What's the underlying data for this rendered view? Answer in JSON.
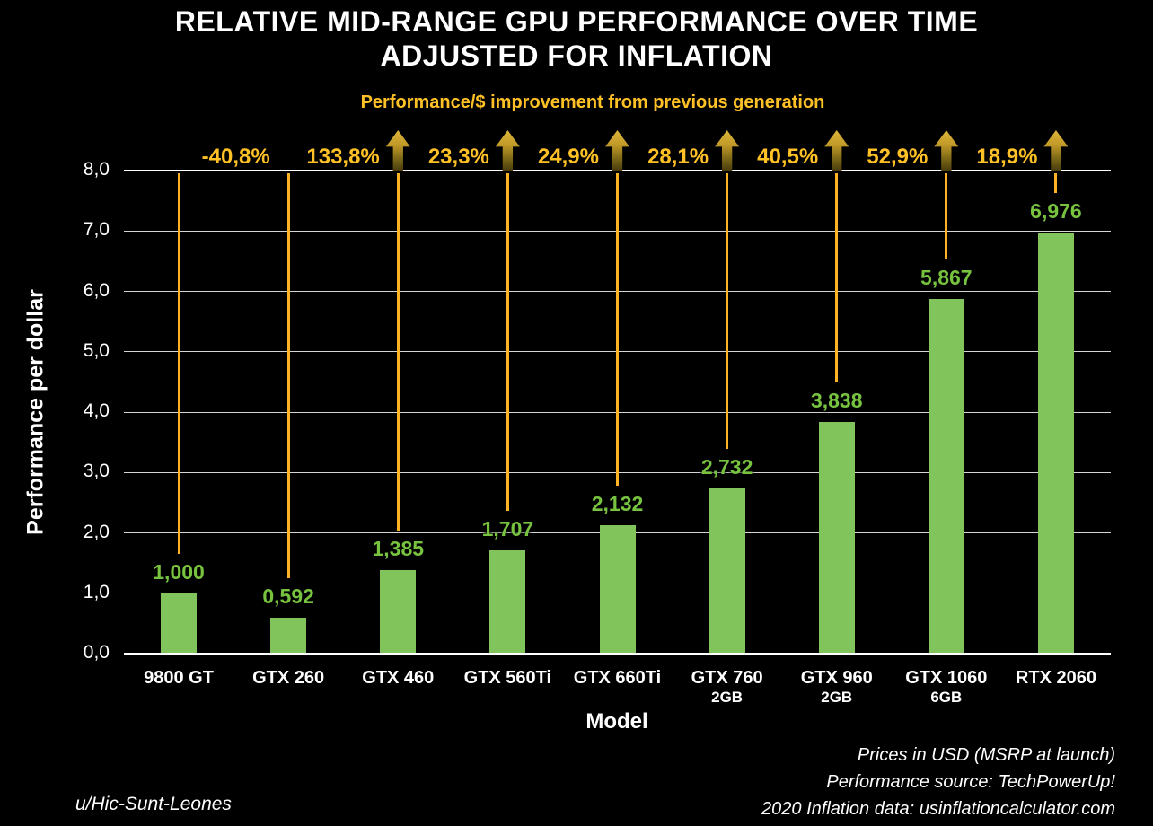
{
  "title": {
    "line1": "RELATIVE MID-RANGE GPU PERFORMANCE OVER TIME",
    "line2": "ADJUSTED FOR INFLATION"
  },
  "subtitle": "Performance/$ improvement from previous generation",
  "chart_data": {
    "type": "bar",
    "title": "Relative mid-range GPU performance over time adjusted for inflation",
    "xlabel": "Model",
    "ylabel": "Performance per dollar",
    "ylim": [
      0,
      8
    ],
    "ytick_step": 1,
    "ytick_labels": [
      "0,0",
      "1,0",
      "2,0",
      "3,0",
      "4,0",
      "5,0",
      "6,0",
      "7,0",
      "8,0"
    ],
    "grid": true,
    "legend": false,
    "categories": [
      "9800 GT",
      "GTX 260",
      "GTX 460",
      "GTX 560Ti",
      "GTX 660Ti",
      "GTX 760",
      "GTX 960",
      "GTX 1060",
      "RTX 2060"
    ],
    "category_sublabels": [
      "",
      "",
      "",
      "",
      "",
      "2GB",
      "2GB",
      "6GB",
      ""
    ],
    "values": [
      1.0,
      0.592,
      1.385,
      1.707,
      2.132,
      2.732,
      3.838,
      5.867,
      6.976
    ],
    "value_labels": [
      "1,000",
      "0,592",
      "1,385",
      "1,707",
      "2,132",
      "2,732",
      "3,838",
      "5,867",
      "6,976"
    ],
    "pct_changes": [
      {
        "label": "-40,8%",
        "arrow": false
      },
      {
        "label": "133,8%",
        "arrow": true
      },
      {
        "label": "23,3%",
        "arrow": true
      },
      {
        "label": "24,9%",
        "arrow": true
      },
      {
        "label": "28,1%",
        "arrow": true
      },
      {
        "label": "40,5%",
        "arrow": true
      },
      {
        "label": "52,9%",
        "arrow": true
      },
      {
        "label": "18,9%",
        "arrow": true
      }
    ],
    "colors": {
      "background": "#000000",
      "bar": "#82c45c",
      "value_label": "#77c33f",
      "accent_gold": "#ffc125",
      "drop_line": "#ffb224",
      "arrow_top": "#dcb53a",
      "arrow_bottom": "#46390b",
      "grid": "#d4d4d4",
      "axis": "#ffffff",
      "text": "#ffffff"
    }
  },
  "footer": {
    "credit": "u/Hic-Sunt-Leones",
    "notes": [
      "Prices in USD (MSRP at launch)",
      "Performance source: TechPowerUp!",
      "2020 Inflation data: usinflationcalculator.com"
    ]
  }
}
